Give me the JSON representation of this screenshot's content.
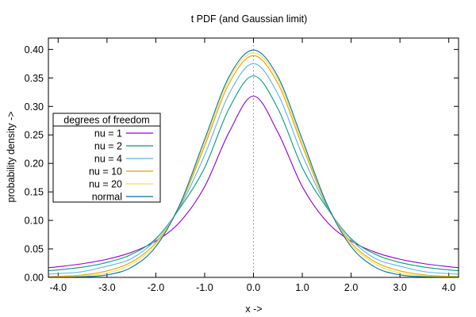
{
  "chart_data": {
    "type": "line",
    "title": "t PDF (and Gaussian limit)",
    "xlabel": "x ->",
    "ylabel": "probability density ->",
    "xlim": [
      -4.2,
      4.2
    ],
    "ylim": [
      0,
      0.42
    ],
    "x_ticks": [
      "-4.0",
      "-3.0",
      "-2.0",
      "-1.0",
      "0.0",
      "1.0",
      "2.0",
      "3.0",
      "4.0"
    ],
    "x_tick_values": [
      -4,
      -3,
      -2,
      -1,
      0,
      1,
      2,
      3,
      4
    ],
    "y_ticks": [
      "0.00",
      "0.05",
      "0.10",
      "0.15",
      "0.20",
      "0.25",
      "0.30",
      "0.35",
      "0.40"
    ],
    "y_tick_values": [
      0,
      0.05,
      0.1,
      0.15,
      0.2,
      0.25,
      0.3,
      0.35,
      0.4
    ],
    "grid": false,
    "legend_title": "degrees of freedom",
    "legend_position": "left",
    "x": [
      -4.2,
      -4.0,
      -3.5,
      -3.0,
      -2.5,
      -2.0,
      -1.5,
      -1.0,
      -0.5,
      0.0,
      0.5,
      1.0,
      1.5,
      2.0,
      2.5,
      3.0,
      3.5,
      4.0,
      4.2
    ],
    "series": [
      {
        "name": "nu = 1",
        "color": "#9400d3",
        "values": [
          0.017,
          0.0187,
          0.024,
          0.0318,
          0.0439,
          0.0637,
          0.0979,
          0.1592,
          0.2546,
          0.3183,
          0.2546,
          0.1592,
          0.0979,
          0.0637,
          0.0439,
          0.0318,
          0.024,
          0.0187,
          0.017
        ]
      },
      {
        "name": "nu = 2",
        "color": "#009e73",
        "values": [
          0.0117,
          0.0131,
          0.018,
          0.0262,
          0.0404,
          0.068,
          0.1226,
          0.1925,
          0.2962,
          0.3536,
          0.2962,
          0.1925,
          0.1226,
          0.068,
          0.0404,
          0.0262,
          0.018,
          0.0131,
          0.0117
        ]
      },
      {
        "name": "nu = 4",
        "color": "#56b4e9",
        "values": [
          0.0057,
          0.0066,
          0.0101,
          0.0197,
          0.0329,
          0.0663,
          0.125,
          0.2147,
          0.322,
          0.375,
          0.322,
          0.2147,
          0.125,
          0.0663,
          0.0329,
          0.0197,
          0.0101,
          0.0066,
          0.0057
        ]
      },
      {
        "name": "nu = 10",
        "color": "#e69f00",
        "values": [
          0.0015,
          0.002,
          0.0043,
          0.0114,
          0.0269,
          0.0611,
          0.1274,
          0.2304,
          0.3402,
          0.3891,
          0.3402,
          0.2304,
          0.1274,
          0.0611,
          0.0269,
          0.0114,
          0.0043,
          0.002,
          0.0015
        ]
      },
      {
        "name": "nu = 20",
        "color": "#f0e442",
        "values": [
          0.0007,
          0.001,
          0.0027,
          0.0077,
          0.0232,
          0.0581,
          0.129,
          0.236,
          0.3466,
          0.394,
          0.3466,
          0.236,
          0.129,
          0.0581,
          0.0232,
          0.0077,
          0.0027,
          0.001,
          0.0007
        ]
      },
      {
        "name": "normal",
        "color": "#0072b2",
        "values": [
          0.0001,
          0.0001,
          0.0009,
          0.0044,
          0.0175,
          0.054,
          0.1295,
          0.242,
          0.3521,
          0.3989,
          0.3521,
          0.242,
          0.1295,
          0.054,
          0.0175,
          0.0044,
          0.0009,
          0.0001,
          0.0001
        ]
      }
    ]
  }
}
